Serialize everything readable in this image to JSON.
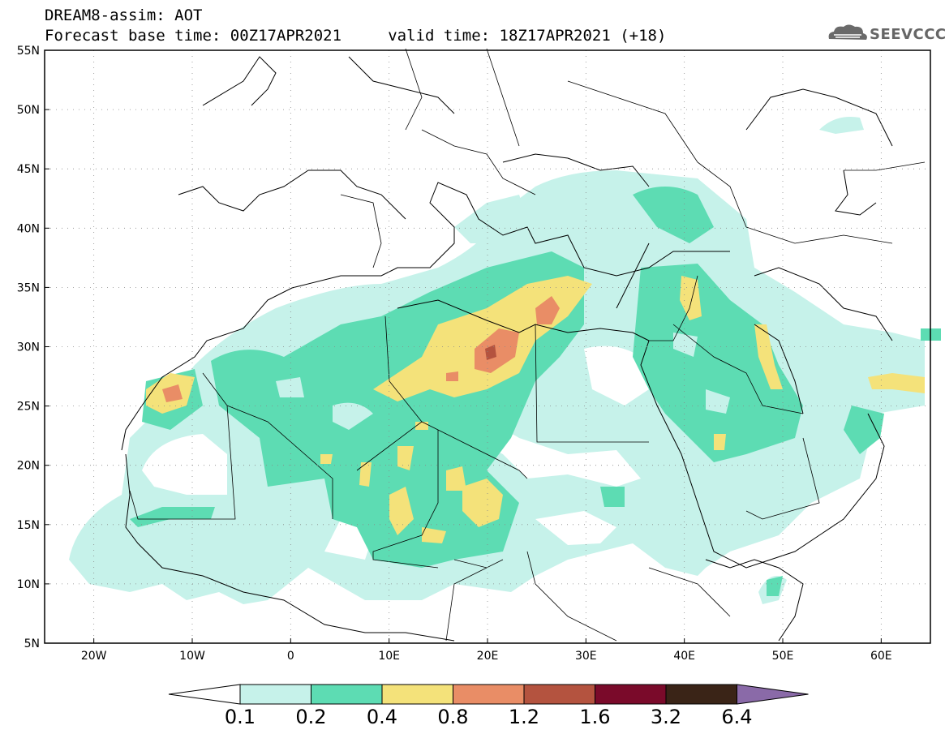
{
  "header": {
    "line1": "DREAM8-assim: AOT",
    "line2": "Forecast base time: 00Z17APR2021     valid time: 18Z17APR2021 (+18)",
    "logo_text": "SEEVCCC"
  },
  "map": {
    "lat_labels": [
      "55N",
      "50N",
      "45N",
      "40N",
      "35N",
      "30N",
      "25N",
      "20N",
      "15N",
      "10N",
      "5N"
    ],
    "lon_labels": [
      "20W",
      "10W",
      "0",
      "10E",
      "20E",
      "30E",
      "40E",
      "50E",
      "60E"
    ],
    "extent": {
      "lon_min": -25,
      "lon_max": 65,
      "lat_min": 5,
      "lat_max": 55
    }
  },
  "colorbar": {
    "labels": [
      "0.1",
      "0.2",
      "0.4",
      "0.8",
      "1.2",
      "1.6",
      "3.2",
      "6.4"
    ],
    "colors": [
      "#c6f2ea",
      "#5ddcb3",
      "#f4e27a",
      "#e98d66",
      "#b4533f",
      "#7a0a2a",
      "#3a2417",
      "#8a6aa8"
    ]
  }
}
